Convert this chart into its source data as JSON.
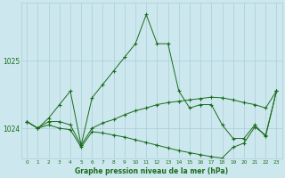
{
  "bg_color": "#cce8ee",
  "grid_color": "#aacdd6",
  "line_color": "#1a6b1a",
  "xlabel": "Graphe pression niveau de la mer (hPa)",
  "xlim": [
    -0.5,
    23.5
  ],
  "ylim": [
    1023.55,
    1025.85
  ],
  "yticks": [
    1024,
    1025
  ],
  "ytick_labels": [
    "1024",
    "1025"
  ],
  "xticks": [
    0,
    1,
    2,
    3,
    4,
    5,
    6,
    7,
    8,
    9,
    10,
    11,
    12,
    13,
    14,
    15,
    16,
    17,
    18,
    19,
    20,
    21,
    22,
    23
  ],
  "series": [
    {
      "x": [
        0,
        1,
        2,
        3,
        4,
        5,
        6,
        7,
        8,
        9,
        10,
        11,
        12,
        13,
        14,
        15,
        16,
        17,
        18,
        19,
        20,
        21,
        22,
        23
      ],
      "y": [
        1024.1,
        1024.0,
        1024.15,
        1024.35,
        1024.55,
        1023.75,
        1024.45,
        1024.65,
        1024.85,
        1025.05,
        1025.25,
        1025.68,
        1025.25,
        1025.25,
        1024.55,
        1024.3,
        1024.35,
        1024.35,
        1024.05,
        1023.85,
        1023.85,
        1024.05,
        1023.88,
        1024.55
      ]
    },
    {
      "x": [
        0,
        1,
        2,
        3,
        4,
        5,
        6,
        7,
        8,
        9,
        10,
        11,
        12,
        13,
        14,
        15,
        16,
        17,
        18,
        19,
        20,
        21,
        22,
        23
      ],
      "y": [
        1024.1,
        1024.0,
        1024.1,
        1024.1,
        1024.05,
        1023.75,
        1024.0,
        1024.08,
        1024.13,
        1024.2,
        1024.26,
        1024.3,
        1024.35,
        1024.38,
        1024.4,
        1024.42,
        1024.44,
        1024.46,
        1024.45,
        1024.42,
        1024.38,
        1024.35,
        1024.3,
        1024.55
      ]
    },
    {
      "x": [
        0,
        1,
        2,
        3,
        4,
        5,
        6,
        7,
        8,
        9,
        10,
        11,
        12,
        13,
        14,
        15,
        16,
        17,
        18,
        19,
        20,
        21,
        22,
        23
      ],
      "y": [
        1024.1,
        1024.0,
        1024.05,
        1024.0,
        1023.98,
        1023.72,
        1023.95,
        1023.93,
        1023.9,
        1023.87,
        1023.83,
        1023.79,
        1023.75,
        1023.71,
        1023.67,
        1023.64,
        1023.61,
        1023.58,
        1023.56,
        1023.72,
        1023.78,
        1024.02,
        1023.9,
        1024.55
      ]
    }
  ]
}
